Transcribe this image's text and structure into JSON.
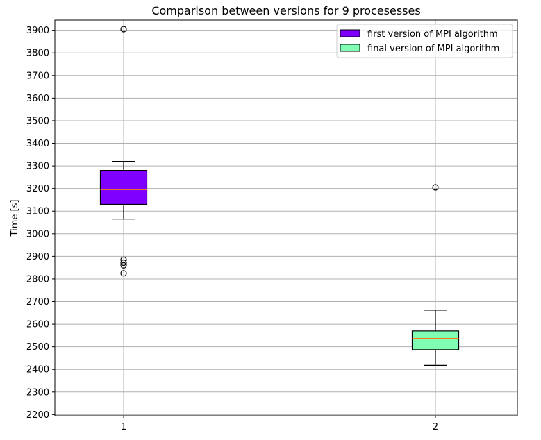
{
  "chart_data": {
    "type": "boxplot",
    "title": "Comparison between versions for 9 procesesses",
    "xlabel": "",
    "ylabel": "Time [s]",
    "ylim": [
      2195,
      3945
    ],
    "yticks": [
      2200,
      2300,
      2400,
      2500,
      2600,
      2700,
      2800,
      2900,
      3000,
      3100,
      3200,
      3300,
      3400,
      3500,
      3600,
      3700,
      3800,
      3900
    ],
    "categories": [
      "1",
      "2"
    ],
    "grid": true,
    "legend_position": "top-right",
    "series": [
      {
        "name": "first version of MPI algorithm",
        "color": "#7f00ff",
        "category": "1",
        "whisker_low": 3065,
        "q1": 3130,
        "median": 3195,
        "q3": 3280,
        "whisker_high": 3320,
        "outliers": [
          3905,
          2885,
          2872,
          2860,
          2825
        ]
      },
      {
        "name": "final version of MPI algorithm",
        "color": "#80ffb4",
        "category": "2",
        "whisker_low": 2418,
        "q1": 2487,
        "median": 2537,
        "q3": 2570,
        "whisker_high": 2662,
        "outliers": [
          3205
        ]
      }
    ],
    "median_color": "#ff7f0e"
  }
}
